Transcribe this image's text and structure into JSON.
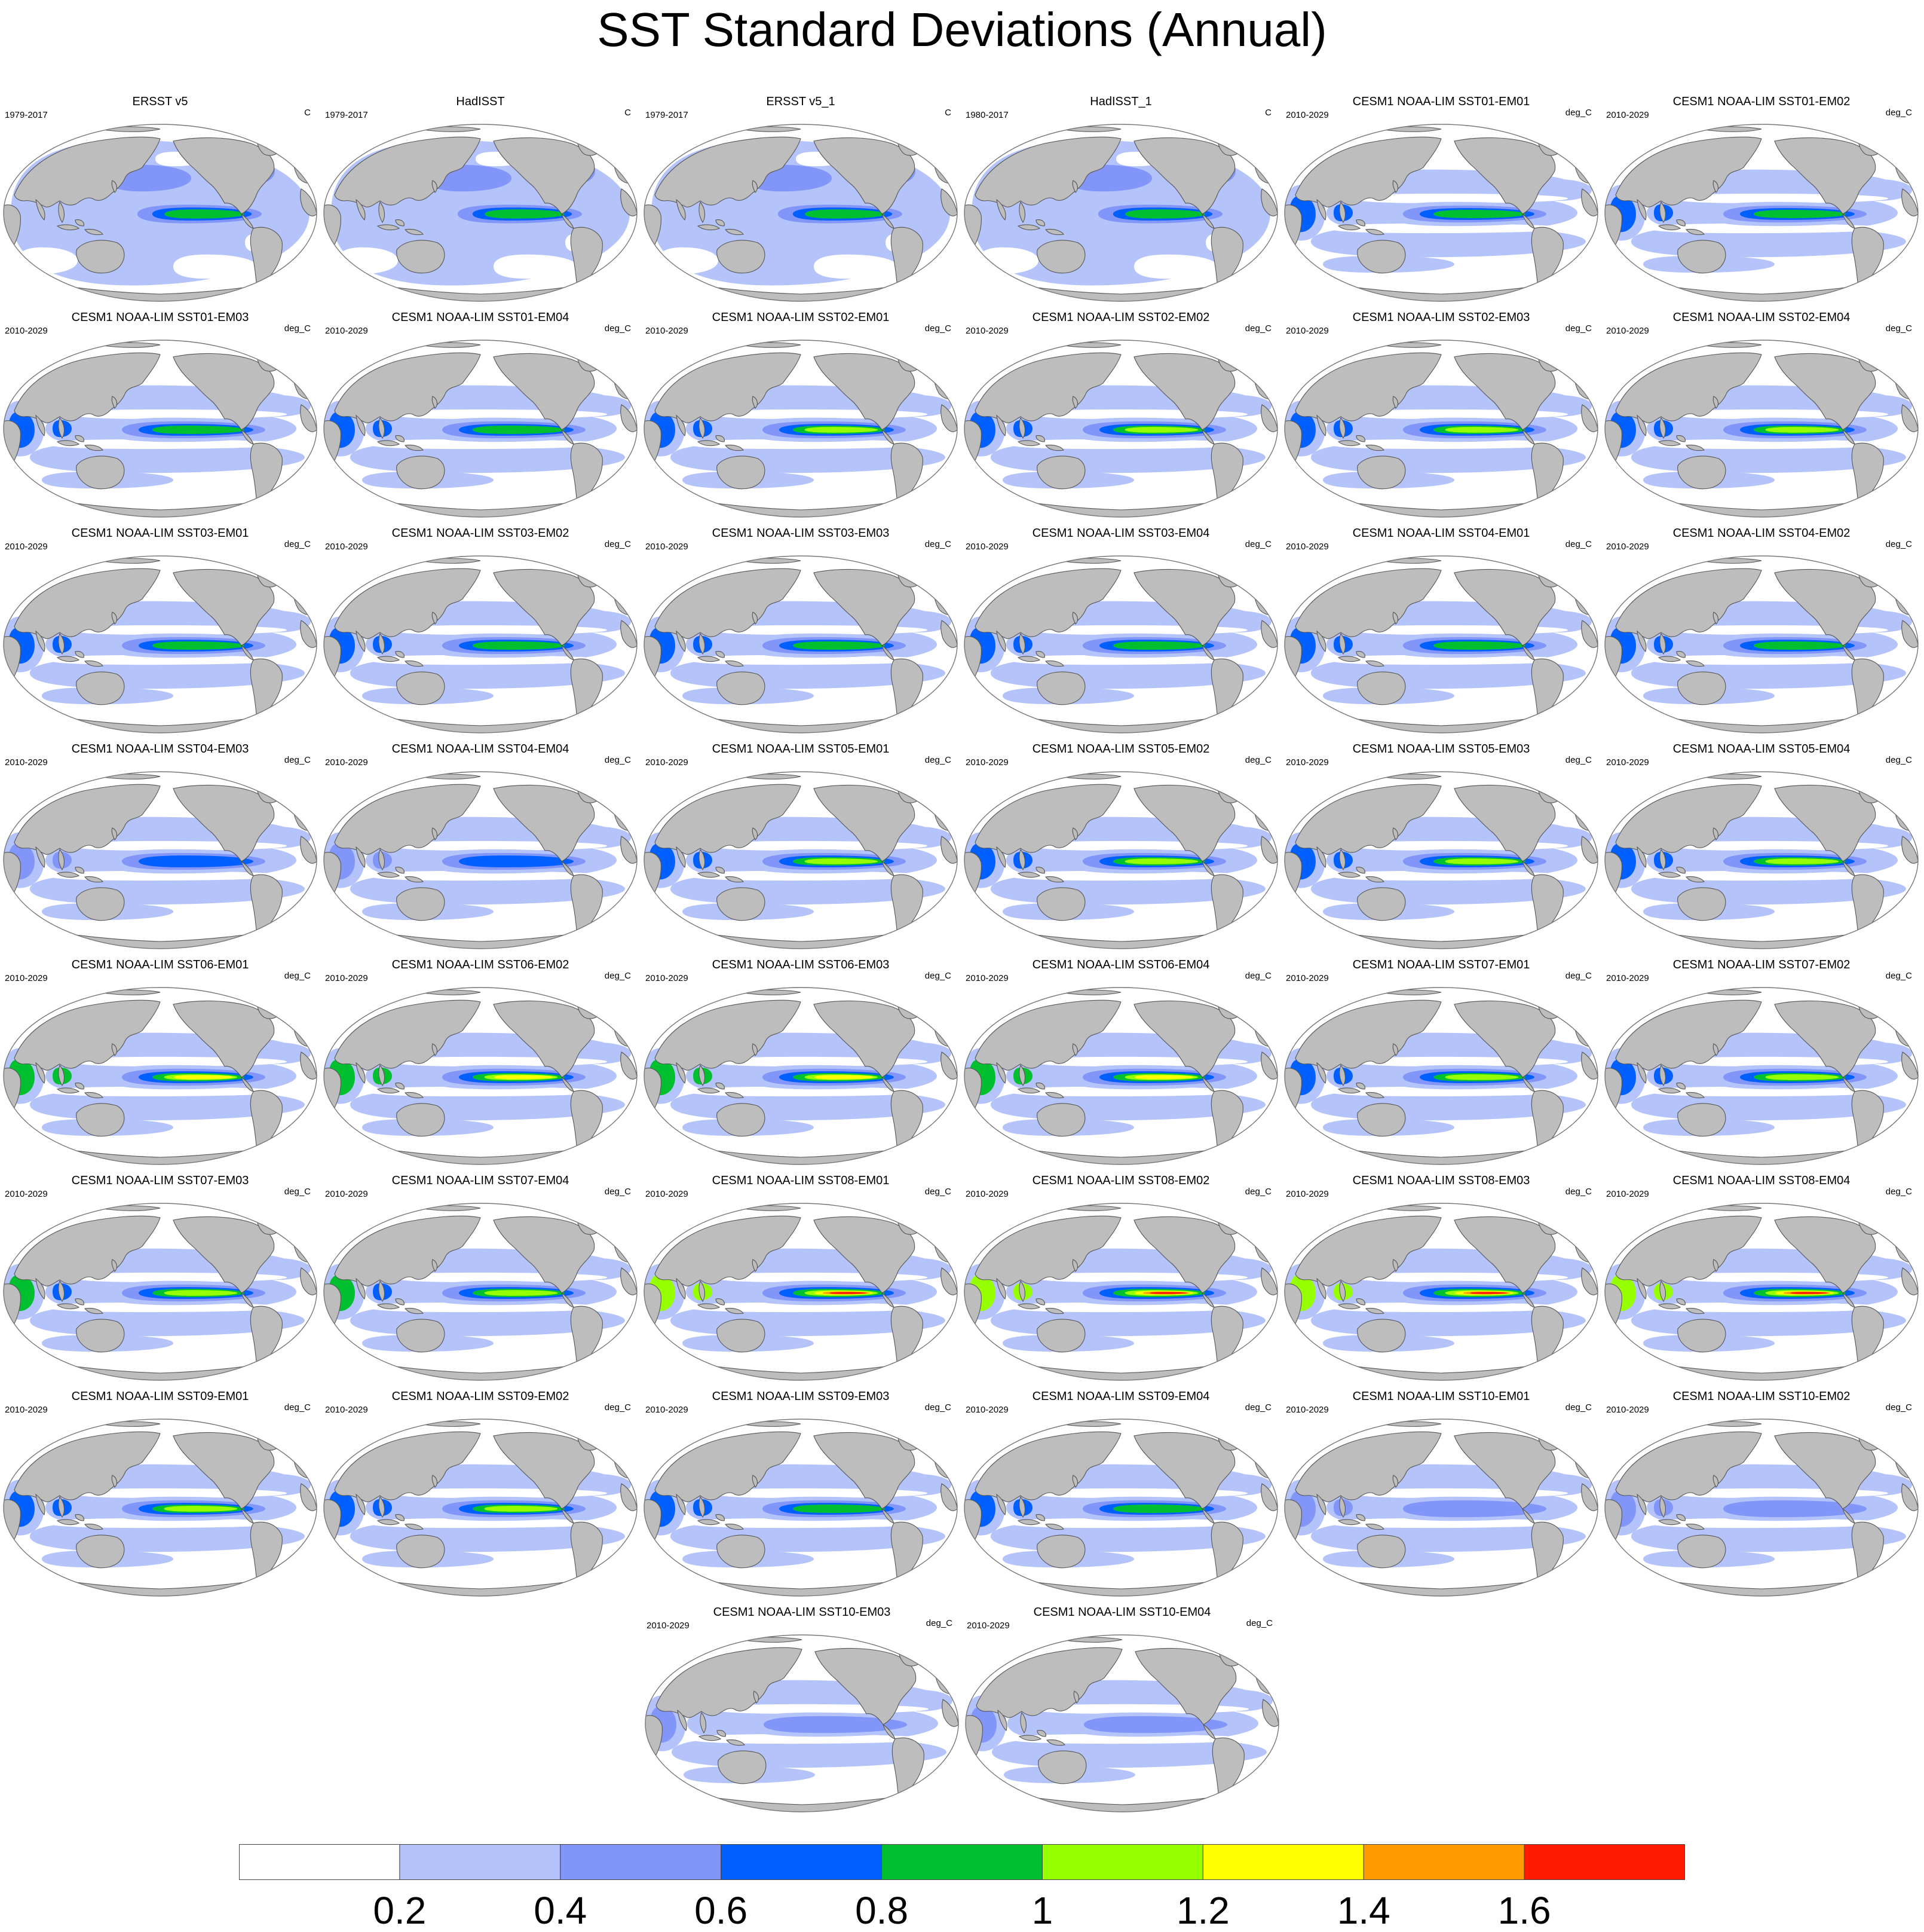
{
  "title": "SST Standard Deviations (Annual)",
  "colors": {
    "ocean": "#ffffff",
    "land": "#bdbdbd",
    "coast": "#555555",
    "levels": [
      "#ffffff",
      "#b4c3fa",
      "#8296f9",
      "#0060ff",
      "#00c030",
      "#96ff00",
      "#ffff00",
      "#ff9a00",
      "#ff1a00"
    ]
  },
  "colorbar": {
    "labels": [
      "0.2",
      "0.4",
      "0.6",
      "0.8",
      "1",
      "1.2",
      "1.4",
      "1.6"
    ],
    "levels": [
      0.2,
      0.4,
      0.6,
      0.8,
      1.0,
      1.2,
      1.4,
      1.6
    ]
  },
  "panels": [
    {
      "title": "ERSST v5",
      "period": "1979-2017",
      "units": "C",
      "peak": 0.9,
      "kind": "obs"
    },
    {
      "title": "HadISST",
      "period": "1979-2017",
      "units": "C",
      "peak": 0.9,
      "kind": "obs"
    },
    {
      "title": "ERSST v5_1",
      "period": "1979-2017",
      "units": "C",
      "peak": 0.9,
      "kind": "obs"
    },
    {
      "title": "HadISST_1",
      "period": "1980-2017",
      "units": "C",
      "peak": 0.9,
      "kind": "obs"
    },
    {
      "title": "CESM1 NOAA-LIM SST01-EM01",
      "period": "2010-2029",
      "units": "deg_C",
      "peak": 1.0,
      "kind": "model"
    },
    {
      "title": "CESM1 NOAA-LIM SST01-EM02",
      "period": "2010-2029",
      "units": "deg_C",
      "peak": 1.0,
      "kind": "model"
    },
    {
      "title": "CESM1 NOAA-LIM SST01-EM03",
      "period": "2010-2029",
      "units": "deg_C",
      "peak": 1.0,
      "kind": "model"
    },
    {
      "title": "CESM1 NOAA-LIM SST01-EM04",
      "period": "2010-2029",
      "units": "deg_C",
      "peak": 1.0,
      "kind": "model"
    },
    {
      "title": "CESM1 NOAA-LIM SST02-EM01",
      "period": "2010-2029",
      "units": "deg_C",
      "peak": 1.05,
      "kind": "model"
    },
    {
      "title": "CESM1 NOAA-LIM SST02-EM02",
      "period": "2010-2029",
      "units": "deg_C",
      "peak": 1.05,
      "kind": "model"
    },
    {
      "title": "CESM1 NOAA-LIM SST02-EM03",
      "period": "2010-2029",
      "units": "deg_C",
      "peak": 1.05,
      "kind": "model"
    },
    {
      "title": "CESM1 NOAA-LIM SST02-EM04",
      "period": "2010-2029",
      "units": "deg_C",
      "peak": 1.05,
      "kind": "model"
    },
    {
      "title": "CESM1 NOAA-LIM SST03-EM01",
      "period": "2010-2029",
      "units": "deg_C",
      "peak": 1.0,
      "kind": "model"
    },
    {
      "title": "CESM1 NOAA-LIM SST03-EM02",
      "period": "2010-2029",
      "units": "deg_C",
      "peak": 1.0,
      "kind": "model"
    },
    {
      "title": "CESM1 NOAA-LIM SST03-EM03",
      "period": "2010-2029",
      "units": "deg_C",
      "peak": 1.0,
      "kind": "model"
    },
    {
      "title": "CESM1 NOAA-LIM SST03-EM04",
      "period": "2010-2029",
      "units": "deg_C",
      "peak": 0.95,
      "kind": "model"
    },
    {
      "title": "CESM1 NOAA-LIM SST04-EM01",
      "period": "2010-2029",
      "units": "deg_C",
      "peak": 0.95,
      "kind": "model"
    },
    {
      "title": "CESM1 NOAA-LIM SST04-EM02",
      "period": "2010-2029",
      "units": "deg_C",
      "peak": 0.95,
      "kind": "model"
    },
    {
      "title": "CESM1 NOAA-LIM SST04-EM03",
      "period": "2010-2029",
      "units": "deg_C",
      "peak": 0.78,
      "kind": "model"
    },
    {
      "title": "CESM1 NOAA-LIM SST04-EM04",
      "period": "2010-2029",
      "units": "deg_C",
      "peak": 0.78,
      "kind": "model"
    },
    {
      "title": "CESM1 NOAA-LIM SST05-EM01",
      "period": "2010-2029",
      "units": "deg_C",
      "peak": 1.1,
      "kind": "model"
    },
    {
      "title": "CESM1 NOAA-LIM SST05-EM02",
      "period": "2010-2029",
      "units": "deg_C",
      "peak": 1.1,
      "kind": "model"
    },
    {
      "title": "CESM1 NOAA-LIM SST05-EM03",
      "period": "2010-2029",
      "units": "deg_C",
      "peak": 1.1,
      "kind": "model"
    },
    {
      "title": "CESM1 NOAA-LIM SST05-EM04",
      "period": "2010-2029",
      "units": "deg_C",
      "peak": 1.1,
      "kind": "model"
    },
    {
      "title": "CESM1 NOAA-LIM SST06-EM01",
      "period": "2010-2029",
      "units": "deg_C",
      "peak": 1.25,
      "kind": "model"
    },
    {
      "title": "CESM1 NOAA-LIM SST06-EM02",
      "period": "2010-2029",
      "units": "deg_C",
      "peak": 1.25,
      "kind": "model"
    },
    {
      "title": "CESM1 NOAA-LIM SST06-EM03",
      "period": "2010-2029",
      "units": "deg_C",
      "peak": 1.25,
      "kind": "model"
    },
    {
      "title": "CESM1 NOAA-LIM SST06-EM04",
      "period": "2010-2029",
      "units": "deg_C",
      "peak": 1.25,
      "kind": "model"
    },
    {
      "title": "CESM1 NOAA-LIM SST07-EM01",
      "period": "2010-2029",
      "units": "deg_C",
      "peak": 1.05,
      "kind": "model"
    },
    {
      "title": "CESM1 NOAA-LIM SST07-EM02",
      "period": "2010-2029",
      "units": "deg_C",
      "peak": 1.05,
      "kind": "model"
    },
    {
      "title": "CESM1 NOAA-LIM SST07-EM03",
      "period": "2010-2029",
      "units": "deg_C",
      "peak": 1.15,
      "kind": "model"
    },
    {
      "title": "CESM1 NOAA-LIM SST07-EM04",
      "period": "2010-2029",
      "units": "deg_C",
      "peak": 1.15,
      "kind": "model"
    },
    {
      "title": "CESM1 NOAA-LIM SST08-EM01",
      "period": "2010-2029",
      "units": "deg_C",
      "peak": 1.75,
      "kind": "model"
    },
    {
      "title": "CESM1 NOAA-LIM SST08-EM02",
      "period": "2010-2029",
      "units": "deg_C",
      "peak": 1.75,
      "kind": "model"
    },
    {
      "title": "CESM1 NOAA-LIM SST08-EM03",
      "period": "2010-2029",
      "units": "deg_C",
      "peak": 1.75,
      "kind": "model"
    },
    {
      "title": "CESM1 NOAA-LIM SST08-EM04",
      "period": "2010-2029",
      "units": "deg_C",
      "peak": 1.75,
      "kind": "model"
    },
    {
      "title": "CESM1 NOAA-LIM SST09-EM01",
      "period": "2010-2029",
      "units": "deg_C",
      "peak": 1.05,
      "kind": "model"
    },
    {
      "title": "CESM1 NOAA-LIM SST09-EM02",
      "period": "2010-2029",
      "units": "deg_C",
      "peak": 1.05,
      "kind": "model"
    },
    {
      "title": "CESM1 NOAA-LIM SST09-EM03",
      "period": "2010-2029",
      "units": "deg_C",
      "peak": 1.0,
      "kind": "model"
    },
    {
      "title": "CESM1 NOAA-LIM SST09-EM04",
      "period": "2010-2029",
      "units": "deg_C",
      "peak": 1.0,
      "kind": "model"
    },
    {
      "title": "CESM1 NOAA-LIM SST10-EM01",
      "period": "2010-2029",
      "units": "deg_C",
      "peak": 0.62,
      "kind": "model"
    },
    {
      "title": "CESM1 NOAA-LIM SST10-EM02",
      "period": "2010-2029",
      "units": "deg_C",
      "peak": 0.62,
      "kind": "model"
    },
    {
      "title": "CESM1 NOAA-LIM SST10-EM03",
      "period": "2010-2029",
      "units": "deg_C",
      "peak": 0.58,
      "kind": "model"
    },
    {
      "title": "CESM1 NOAA-LIM SST10-EM04",
      "period": "2010-2029",
      "units": "deg_C",
      "peak": 0.58,
      "kind": "model"
    }
  ]
}
